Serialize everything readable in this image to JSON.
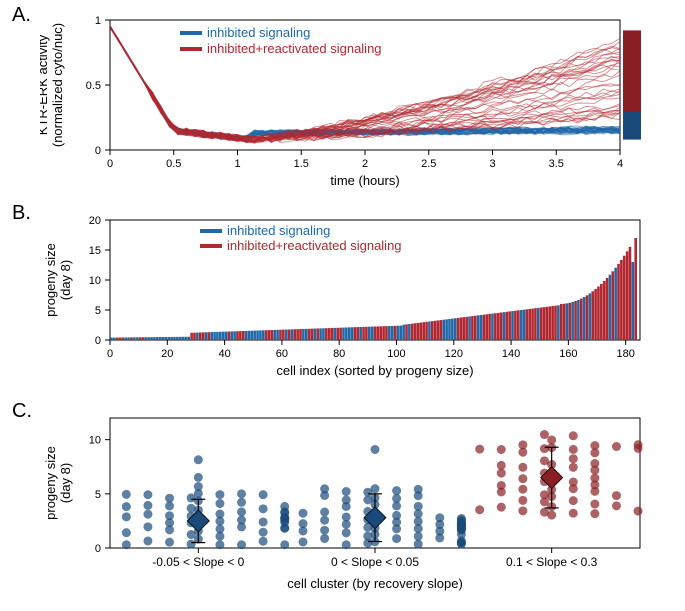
{
  "colors": {
    "blue": "#2268a8",
    "red": "#b22830",
    "dark_blue": "#1a4a7a",
    "dark_red": "#8a1f25",
    "axis": "#000000",
    "background": "#ffffff"
  },
  "panelA": {
    "label": "A.",
    "type": "line",
    "xlabel": "time (hours)",
    "ylabel": "KTR-ERK activity\n(normalized cyto/nuc)",
    "xlim": [
      0,
      4
    ],
    "ylim": [
      0,
      1
    ],
    "xticks": [
      0,
      0.5,
      1,
      1.5,
      2,
      2.5,
      3,
      3.5,
      4
    ],
    "yticks": [
      0,
      0.5,
      1
    ],
    "legend": [
      {
        "label": "inhibited signaling",
        "color": "#2268a8"
      },
      {
        "label": "inhibited+reactivated signaling",
        "color": "#b22830"
      }
    ],
    "series_blue": {
      "n_traces": 35,
      "color": "#2268a8",
      "opacity": 0.55,
      "line_width": 0.9,
      "baseline_end": 0.16,
      "end_spread": 0.1
    },
    "series_red": {
      "n_traces": 35,
      "color": "#b22830",
      "opacity": 0.55,
      "line_width": 0.9,
      "recovery_end_mean": 0.55,
      "end_spread": 0.3
    },
    "box_blue": {
      "ymin": 0.08,
      "ymax": 0.3,
      "color": "#1a4a7a"
    },
    "box_red": {
      "ymin": 0.28,
      "ymax": 0.92,
      "color": "#8a1f25"
    }
  },
  "panelB": {
    "label": "B.",
    "type": "bar",
    "xlabel": "cell index (sorted by progeny size)",
    "ylabel": "progeny size\n(day 8)",
    "xlim": [
      0,
      185
    ],
    "ylim": [
      0,
      20
    ],
    "xticks": [
      0,
      20,
      40,
      60,
      80,
      100,
      120,
      140,
      160,
      180
    ],
    "yticks": [
      0,
      5,
      10,
      15,
      20
    ],
    "legend": [
      {
        "label": "inhibited signaling",
        "color": "#2268a8"
      },
      {
        "label": "inhibited+reactivated signaling",
        "color": "#b22830"
      }
    ],
    "n_bars": 184,
    "bar_width": 0.9
  },
  "panelC": {
    "label": "C.",
    "type": "scatter-swarm",
    "xlabel": "cell cluster (by recovery slope)",
    "ylabel": "progeny size\n(day 8)",
    "ylim": [
      0,
      12
    ],
    "yticks": [
      0,
      5,
      10
    ],
    "clusters": [
      {
        "label": "-0.05 < Slope < 0",
        "x": 1,
        "mean": 2.5,
        "err": 2.0,
        "color": "#1a4a7a",
        "n": 60
      },
      {
        "label": "0 < Slope < 0.05",
        "x": 2,
        "mean": 2.8,
        "err": 2.2,
        "color": "#1a4a7a",
        "n": 70
      },
      {
        "label": "0.1 < Slope < 0.3",
        "x": 3,
        "mean": 6.5,
        "err": 2.8,
        "color": "#8a1f25",
        "n": 55
      }
    ],
    "marker_size": 4.5,
    "marker_opacity": 0.7,
    "diamond_size": 11
  }
}
